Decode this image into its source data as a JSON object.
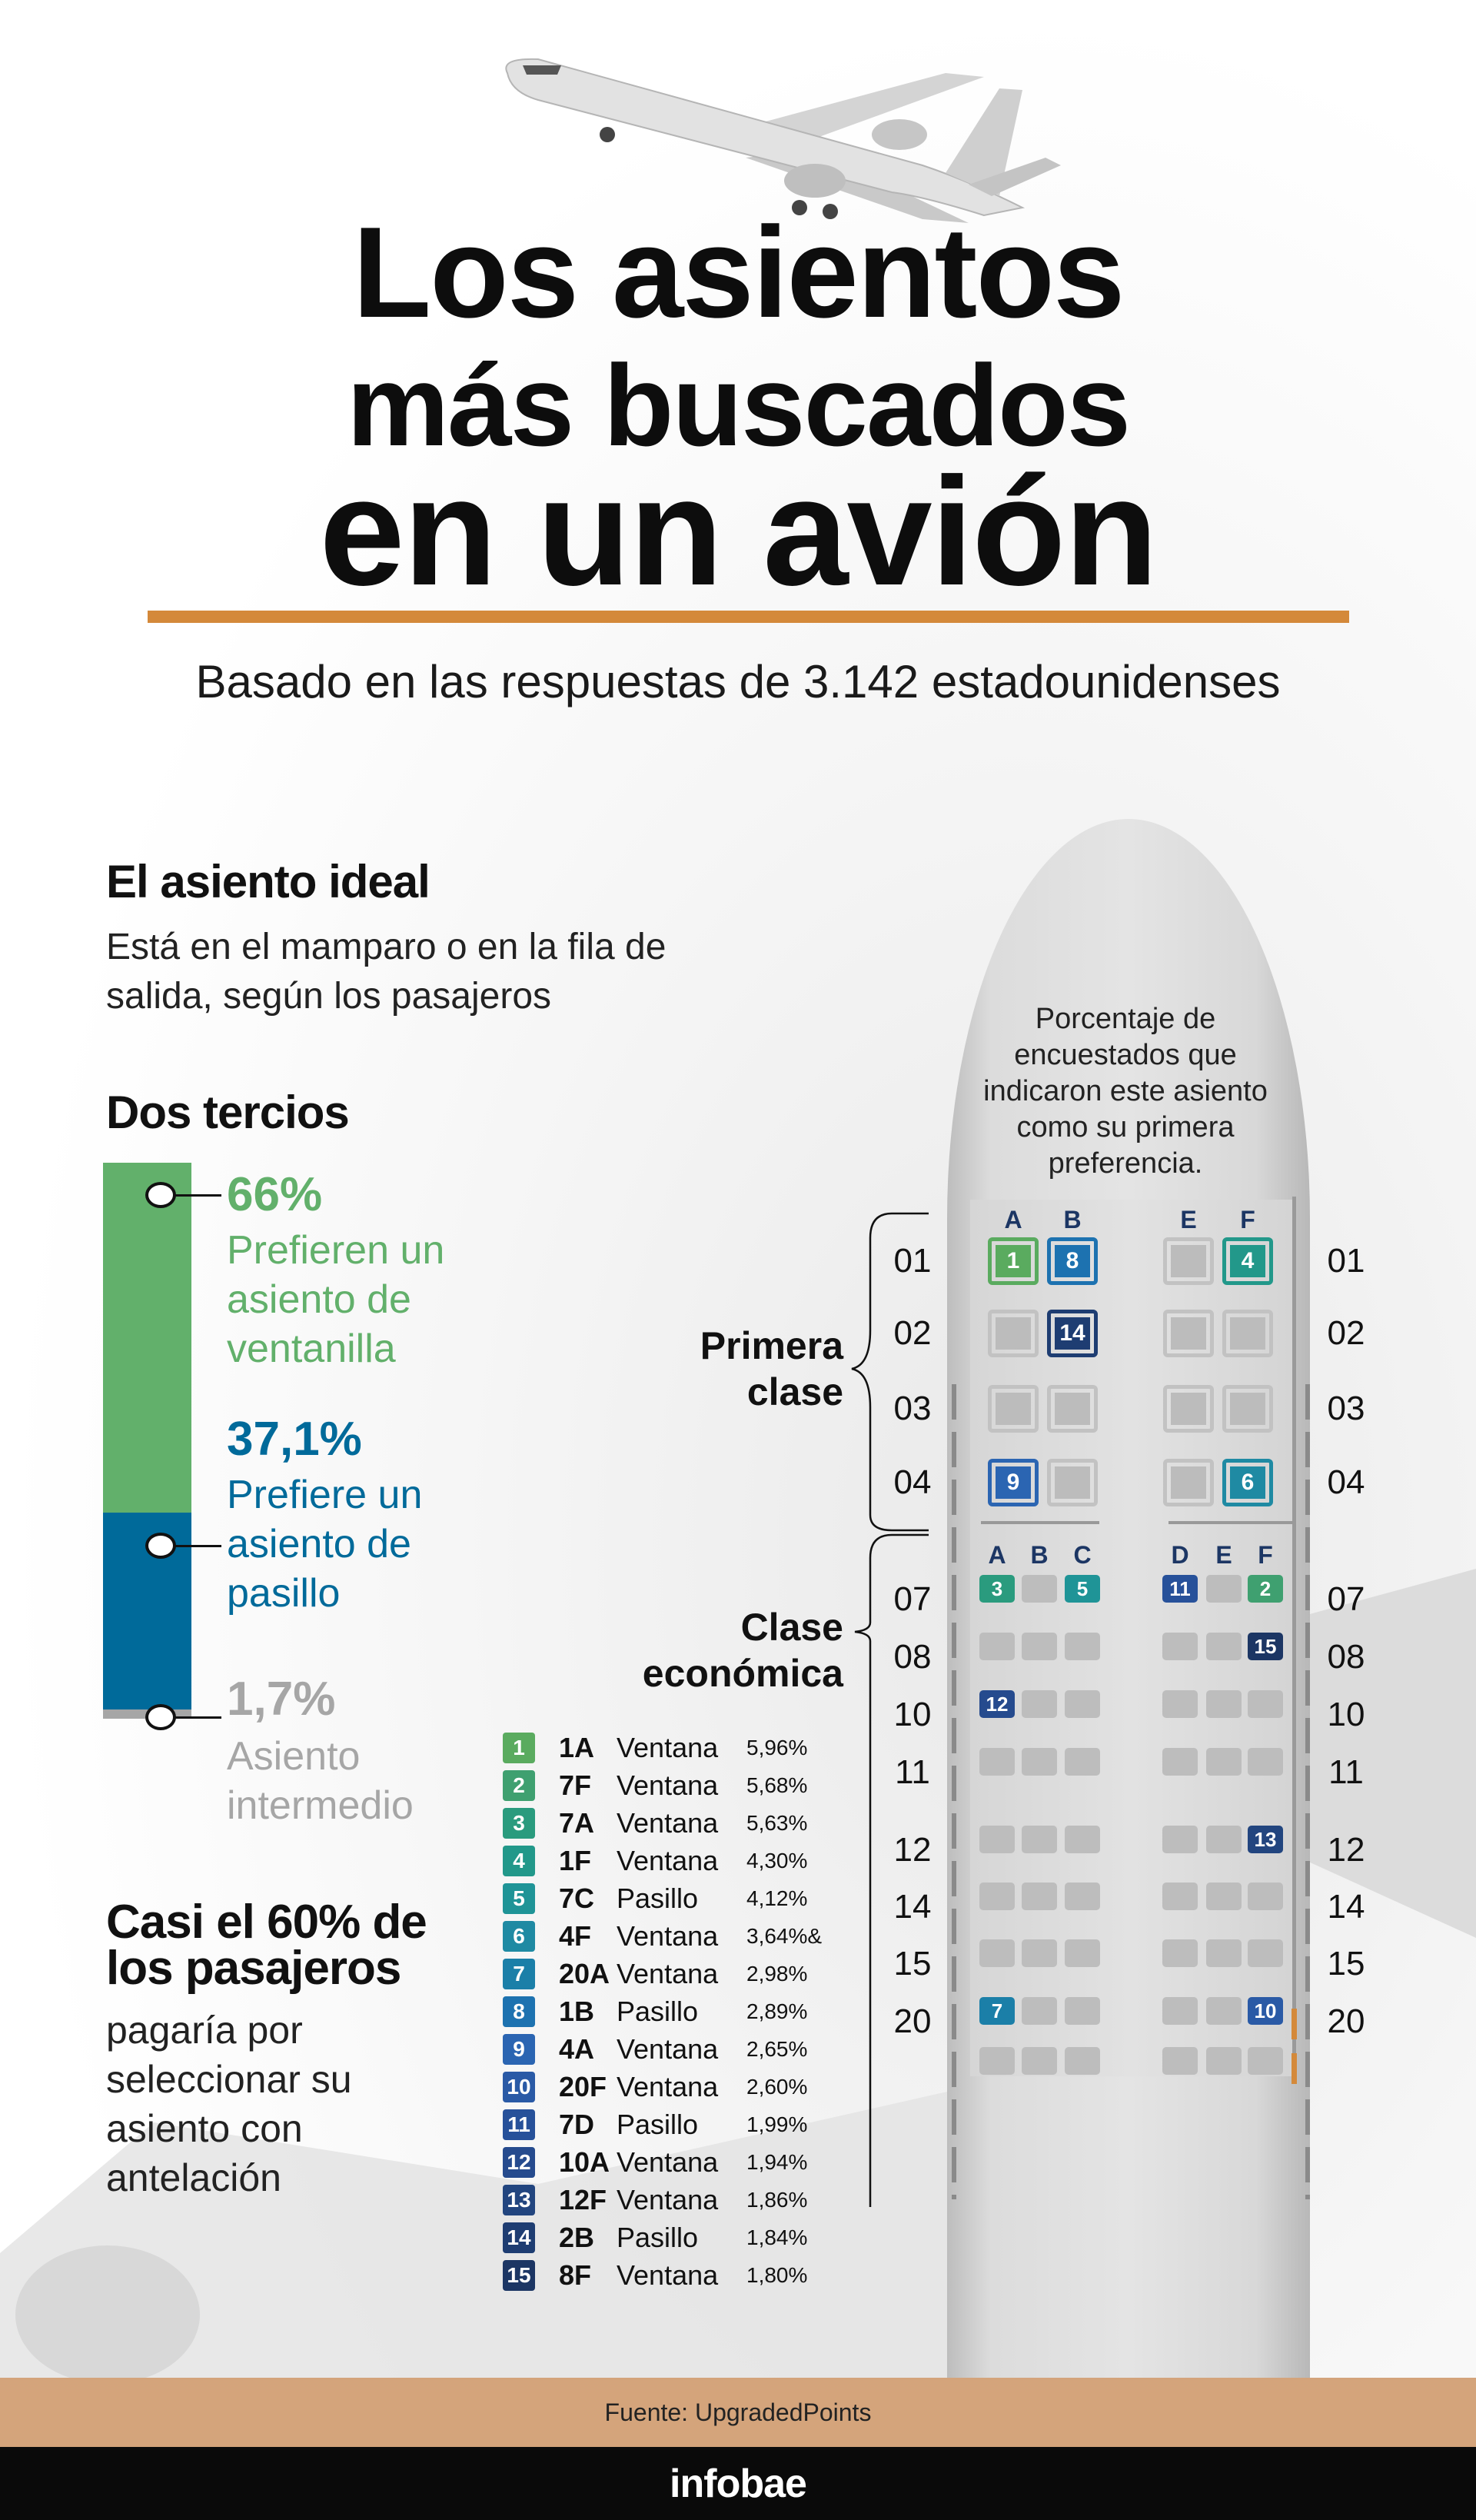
{
  "title": {
    "line1": "Los asientos",
    "line2": "más buscados",
    "line3": "en un avión"
  },
  "subtitle": "Basado en las respuestas de 3.142 estadounidenses",
  "ideal": {
    "heading": "El asiento ideal",
    "text_line1": "Está en el mamparo o en la fila de",
    "text_line2": "salida, según los pasajeros"
  },
  "preferences": {
    "heading": "Dos tercios",
    "colors": {
      "window": "#62b06b",
      "aisle": "#006a9a",
      "middle": "#a6a6a6"
    },
    "window": {
      "value": 66,
      "pct": "66%",
      "lines": [
        "Prefieren un",
        "asiento de",
        "ventanilla"
      ]
    },
    "aisle": {
      "value": 37.1,
      "pct": "37,1%",
      "lines": [
        "Prefiere un",
        "asiento de",
        "pasillo"
      ]
    },
    "middle": {
      "value": 1.7,
      "pct": "1,7%",
      "lines": [
        "Asiento",
        "intermedio"
      ]
    }
  },
  "advance": {
    "heading_line1": "Casi el 60% de",
    "heading_line2": "los pasajeros",
    "lines": [
      "pagaría por",
      "seleccionar su",
      "asiento con",
      "antelación"
    ]
  },
  "seat_map": {
    "note_lines": [
      "Porcentaje de",
      "encuestados que",
      "indicaron este asiento",
      "como su primera",
      "preferencia."
    ],
    "first_class": {
      "label_lines": [
        "Primera",
        "clase"
      ],
      "columns": [
        "A",
        "B",
        "E",
        "F"
      ],
      "rows": [
        {
          "row": "01",
          "seats": [
            1,
            8,
            null,
            4
          ]
        },
        {
          "row": "02",
          "seats": [
            null,
            14,
            null,
            null
          ]
        },
        {
          "row": "03",
          "seats": [
            null,
            null,
            null,
            null
          ]
        },
        {
          "row": "04",
          "seats": [
            9,
            null,
            null,
            6
          ]
        }
      ]
    },
    "economy": {
      "label_lines": [
        "Clase",
        "económica"
      ],
      "columns": [
        "A",
        "B",
        "C",
        "D",
        "E",
        "F"
      ],
      "rows": [
        {
          "row": "07",
          "seats": [
            3,
            null,
            5,
            11,
            null,
            2
          ]
        },
        {
          "row": "08",
          "seats": [
            null,
            null,
            null,
            null,
            null,
            15
          ]
        },
        {
          "row": "10",
          "seats": [
            12,
            null,
            null,
            null,
            null,
            null
          ]
        },
        {
          "row": "11",
          "seats": [
            null,
            null,
            null,
            null,
            null,
            null
          ]
        },
        {
          "row": "12",
          "seats": [
            null,
            null,
            null,
            null,
            null,
            13
          ]
        },
        {
          "row": "14",
          "seats": [
            null,
            null,
            null,
            null,
            null,
            null
          ]
        },
        {
          "row": "15",
          "seats": [
            null,
            null,
            null,
            null,
            null,
            null
          ]
        },
        {
          "row": "20",
          "seats": [
            7,
            null,
            null,
            null,
            null,
            10
          ]
        },
        {
          "row": "",
          "seats": [
            null,
            null,
            null,
            null,
            null,
            null
          ]
        }
      ]
    }
  },
  "ranking": [
    {
      "rank": "1",
      "seat": "1A",
      "type": "Ventana",
      "pct": "5,96%",
      "color": "#5aab5f"
    },
    {
      "rank": "2",
      "seat": "7F",
      "type": "Ventana",
      "pct": "5,68%",
      "color": "#3fa070"
    },
    {
      "rank": "3",
      "seat": "7A",
      "type": "Ventana",
      "pct": "5,63%",
      "color": "#2a9b7e"
    },
    {
      "rank": "4",
      "seat": "1F",
      "type": "Ventana",
      "pct": "4,30%",
      "color": "#22988a"
    },
    {
      "rank": "5",
      "seat": "7C",
      "type": "Pasillo",
      "pct": "4,12%",
      "color": "#1f9497"
    },
    {
      "rank": "6",
      "seat": "4F",
      "type": "Ventana",
      "pct": "3,64%&",
      "color": "#1f8aa3"
    },
    {
      "rank": "7",
      "seat": "20A",
      "type": "Ventana",
      "pct": "2,98%",
      "color": "#1b7fa8"
    },
    {
      "rank": "8",
      "seat": "1B",
      "type": "Pasillo",
      "pct": "2,89%",
      "color": "#1d72b0"
    },
    {
      "rank": "9",
      "seat": "4A",
      "type": "Ventana",
      "pct": "2,65%",
      "color": "#2b65b2"
    },
    {
      "rank": "10",
      "seat": "20F",
      "type": "Ventana",
      "pct": "2,60%",
      "color": "#2a5aa6"
    },
    {
      "rank": "11",
      "seat": "7D",
      "type": "Pasillo",
      "pct": "1,99%",
      "color": "#27519a"
    },
    {
      "rank": "12",
      "seat": "10A",
      "type": "Ventana",
      "pct": "1,94%",
      "color": "#264b8e"
    },
    {
      "rank": "13",
      "seat": "12F",
      "type": "Ventana",
      "pct": "1,86%",
      "color": "#22457f"
    },
    {
      "rank": "14",
      "seat": "2B",
      "type": "Pasillo",
      "pct": "1,84%",
      "color": "#1e3d72"
    },
    {
      "rank": "15",
      "seat": "8F",
      "type": "Ventana",
      "pct": "1,80%",
      "color": "#1c3664"
    }
  ],
  "accent_color": "#d4893a",
  "footer": {
    "source": "Fuente: UpgradedPoints",
    "brand": "infobae"
  }
}
